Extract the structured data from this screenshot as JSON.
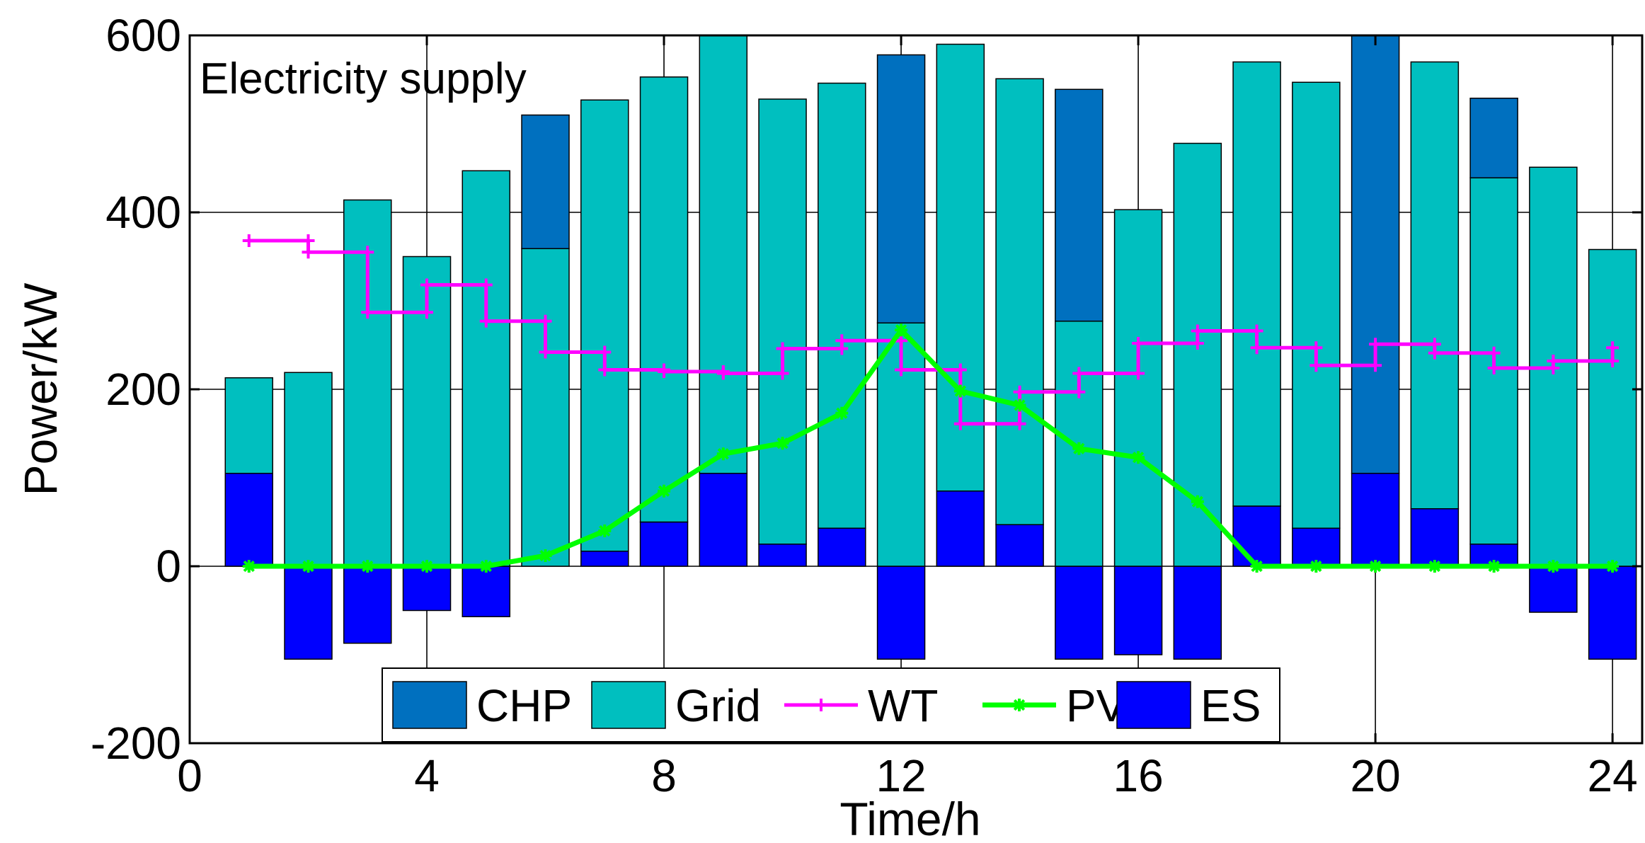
{
  "chart_data": {
    "type": "bar",
    "title": "Electricity supply",
    "xlabel": "Time/h",
    "ylabel": "Power/kW",
    "xlim": [
      0,
      24.5
    ],
    "ylim": [
      -200,
      600
    ],
    "xticks": [
      0,
      4,
      8,
      12,
      16,
      20,
      24
    ],
    "yticks": [
      -200,
      0,
      200,
      400,
      600
    ],
    "grid": true,
    "legend_position": "bottom-center",
    "hours": [
      1,
      2,
      3,
      4,
      5,
      6,
      7,
      8,
      9,
      10,
      11,
      12,
      13,
      14,
      15,
      16,
      17,
      18,
      19,
      20,
      21,
      22,
      23,
      24
    ],
    "bar_series": [
      {
        "name": "ES",
        "color": "#0000ff",
        "values": [
          105,
          -105,
          -87,
          -50,
          -57,
          0,
          17,
          50,
          105,
          25,
          43,
          -105,
          85,
          47,
          -105,
          -100,
          -105,
          68,
          43,
          105,
          65,
          25,
          -52,
          -105
        ]
      },
      {
        "name": "Grid",
        "color": "#00bfbf",
        "values": [
          108,
          219,
          414,
          350,
          447,
          359,
          510,
          503,
          495,
          503,
          503,
          275,
          505,
          504,
          277,
          403,
          478,
          502,
          504,
          0,
          505,
          414,
          451,
          358
        ]
      },
      {
        "name": "CHP",
        "color": "#0070bf",
        "values": [
          0,
          0,
          0,
          0,
          0,
          151,
          0,
          0,
          0,
          0,
          0,
          303,
          0,
          0,
          262,
          0,
          0,
          0,
          0,
          495,
          0,
          90,
          0,
          0
        ]
      }
    ],
    "line_series": [
      {
        "name": "WT",
        "color": "#ff00ff",
        "marker": "+",
        "step": true,
        "values": [
          368,
          355,
          287,
          318,
          277,
          242,
          222,
          220,
          218,
          246,
          255,
          222,
          161,
          197,
          218,
          252,
          266,
          247,
          227,
          251,
          241,
          224,
          232,
          247
        ]
      },
      {
        "name": "PV",
        "color": "#00ff00",
        "marker": "*",
        "step": false,
        "values": [
          0,
          0,
          0,
          0,
          0,
          12,
          40,
          85,
          127,
          139,
          173,
          267,
          198,
          182,
          133,
          123,
          73,
          0,
          0,
          0,
          0,
          0,
          0,
          0
        ]
      }
    ],
    "legend": [
      "CHP",
      "Grid",
      "WT",
      "PV",
      "ES"
    ]
  }
}
